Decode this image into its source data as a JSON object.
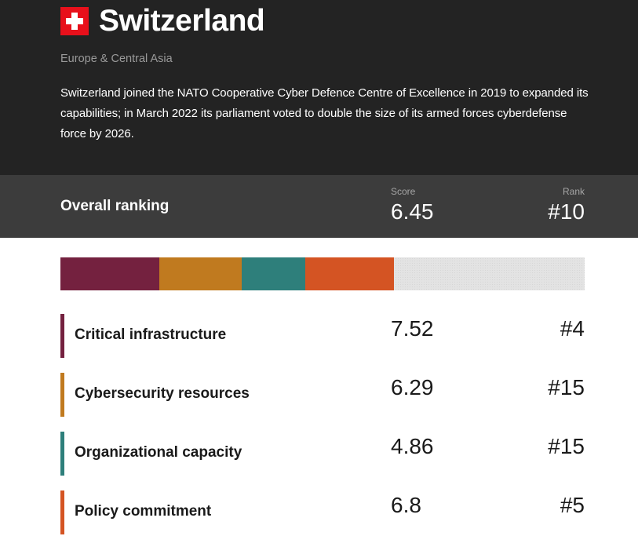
{
  "country": {
    "name": "Switzerland",
    "flag_icon": "swiss-flag-icon",
    "region": "Europe & Central Asia",
    "description": "Switzerland joined the NATO Cooperative Cyber Defence Centre of Excellence in 2019 to expanded its capabilities; in March 2022 its parliament voted to double the size of its armed forces cyberdefense force by 2026."
  },
  "overall": {
    "label": "Overall ranking",
    "score_header": "Score",
    "score": "6.45",
    "rank_header": "Rank",
    "rank": "#10"
  },
  "bar": {
    "max_total": 40,
    "empty_color": "#e3e3e3"
  },
  "categories": [
    {
      "name": "Critical infrastructure",
      "score": "7.52",
      "rank": "#4",
      "color": "#74213f"
    },
    {
      "name": "Cybersecurity resources",
      "score": "6.29",
      "rank": "#15",
      "color": "#c07a1f"
    },
    {
      "name": "Organizational capacity",
      "score": "4.86",
      "rank": "#15",
      "color": "#2e7f7b"
    },
    {
      "name": "Policy commitment",
      "score": "6.8",
      "rank": "#5",
      "color": "#d45423"
    }
  ]
}
